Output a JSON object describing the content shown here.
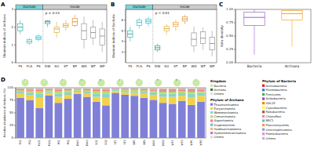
{
  "chart_data": [
    {
      "type": "box",
      "title": "A",
      "y_label": "Shannon indices of Archaea",
      "annotation": "p = 0.15",
      "categories": [
        "FS",
        "FLS",
        "PS",
        "DW",
        "SO",
        "ST",
        "BP",
        "WD",
        "WT",
        "WP"
      ],
      "colors": [
        "#2bb3a8",
        "#3fc3c8",
        "#21b9d0",
        "#2a9d8f",
        "#d9b040",
        "#f0a030",
        "#e8902a",
        "#999999",
        "#999999",
        "#999999"
      ],
      "groups": [
        {
          "label": "Outside",
          "start": 0,
          "end": 2,
          "color": "#7fd3d8"
        },
        {
          "label": "Inside",
          "start": 3,
          "end": 9,
          "color": "#cccccc"
        }
      ],
      "stats": [
        [
          1.6,
          1.8,
          2.0,
          2.2,
          2.4
        ],
        [
          1.0,
          1.1,
          1.2,
          1.3,
          1.4
        ],
        [
          1.2,
          1.3,
          1.4,
          1.5,
          1.6
        ],
        [
          2.0,
          2.2,
          2.3,
          2.35,
          2.4
        ],
        [
          1.4,
          1.7,
          1.9,
          2.0,
          2.3
        ],
        [
          1.8,
          2.0,
          2.1,
          2.2,
          2.4
        ],
        [
          2.0,
          2.1,
          2.3,
          2.5,
          2.7
        ],
        [
          0.8,
          1.3,
          1.8,
          2.2,
          2.6
        ],
        [
          1.0,
          1.4,
          1.7,
          2.0,
          2.4
        ],
        [
          0.6,
          1.0,
          1.5,
          1.9,
          2.3
        ]
      ],
      "ylim": [
        0,
        3
      ],
      "yticks": [
        0,
        1,
        2,
        3
      ]
    },
    {
      "type": "box",
      "title": "B",
      "y_label": "Shannon indices of Bacteria",
      "annotation": "p < 0.01",
      "categories": [
        "FS",
        "FLS",
        "PS",
        "DW",
        "SO",
        "ST",
        "BP",
        "WD",
        "WT",
        "WP"
      ],
      "colors": [
        "#2bb3a8",
        "#3fc3c8",
        "#21b9d0",
        "#2a9d8f",
        "#d9b040",
        "#f0a030",
        "#e8902a",
        "#999999",
        "#999999",
        "#999999"
      ],
      "groups": [
        {
          "label": "Outside",
          "start": 0,
          "end": 2,
          "color": "#7fd3d8"
        },
        {
          "label": "Inside",
          "start": 3,
          "end": 9,
          "color": "#cccccc"
        }
      ],
      "stats": [
        [
          4.0,
          4.4,
          4.7,
          5.0,
          5.4
        ],
        [
          5.2,
          5.5,
          5.8,
          6.0,
          6.2
        ],
        [
          5.4,
          5.7,
          5.9,
          6.1,
          6.3
        ],
        [
          3.0,
          3.2,
          3.4,
          3.6,
          3.8
        ],
        [
          4.6,
          5.0,
          5.2,
          5.4,
          5.6
        ],
        [
          5.0,
          5.4,
          5.6,
          5.8,
          6.0
        ],
        [
          5.6,
          5.9,
          6.1,
          6.3,
          6.5
        ],
        [
          3.0,
          3.6,
          4.2,
          4.8,
          5.4
        ],
        [
          3.2,
          3.8,
          4.3,
          4.9,
          5.3
        ],
        [
          2.6,
          3.2,
          3.8,
          4.4,
          5.0
        ]
      ],
      "ylim": [
        2,
        7
      ],
      "yticks": [
        3,
        4,
        5,
        6
      ]
    },
    {
      "type": "box",
      "title": "C",
      "y_label": "Beta diversity",
      "categories": [
        "Bacteria",
        "Archaea"
      ],
      "colors": [
        "#9e5fc6",
        "#f5a623"
      ],
      "stats": [
        [
          0.15,
          0.7,
          0.85,
          0.95,
          1.0
        ],
        [
          0.3,
          0.8,
          0.92,
          0.98,
          1.0
        ]
      ],
      "ylim": [
        0,
        1
      ],
      "yticks": [
        {
          "value": 0,
          "label": "0.00"
        },
        {
          "value": 0.25,
          "label": "0.25"
        },
        {
          "value": 0.5,
          "label": "0.50"
        },
        {
          "value": 0.75,
          "label": "0.75"
        },
        {
          "value": 1,
          "label": "1.00"
        }
      ]
    },
    {
      "type": "bar",
      "title": "D",
      "y_label": "Relative abundance of Archaea (%)",
      "stacked": true,
      "legend": "right",
      "legend_titles": [
        "Kingdom",
        "Phylum of Archaea",
        "Phylum of Bacteria"
      ],
      "categories": [
        "FS1",
        "FS2",
        "FLS1",
        "FLS2",
        "PS1",
        "PS2",
        "DW1",
        "DW2",
        "SO1",
        "SO2",
        "ST1",
        "ST2",
        "BP1",
        "BP2",
        "WD1",
        "WD2",
        "WT1",
        "WT2",
        "WP1",
        "WP2"
      ],
      "series": [
        {
          "name": "Thaumarchaeota",
          "color": "#8080d8",
          "values": [
            80,
            75,
            60,
            85,
            70,
            78,
            88,
            82,
            72,
            65,
            90,
            86,
            84,
            80,
            76,
            70,
            68,
            74,
            66,
            72
          ]
        },
        {
          "name": "Euryarchaeota",
          "color": "#f2d14b",
          "values": [
            8,
            10,
            20,
            5,
            12,
            8,
            4,
            6,
            10,
            15,
            3,
            5,
            6,
            8,
            10,
            12,
            14,
            10,
            15,
            12
          ]
        },
        {
          "name": "Woesearchaeota",
          "color": "#8dd3c7",
          "values": [
            4,
            5,
            8,
            3,
            6,
            5,
            2,
            4,
            6,
            8,
            2,
            3,
            3,
            4,
            5,
            6,
            6,
            5,
            7,
            6
          ]
        },
        {
          "name": "Crenarchaeota",
          "color": "#b3de69",
          "values": [
            3,
            4,
            5,
            2,
            5,
            4,
            2,
            3,
            5,
            5,
            2,
            2,
            3,
            3,
            3,
            4,
            4,
            4,
            4,
            3
          ]
        },
        {
          "name": "Aigarchaeota",
          "color": "#fb8072",
          "values": [
            2,
            2,
            3,
            2,
            3,
            2,
            1,
            2,
            3,
            3,
            1,
            2,
            2,
            2,
            2,
            3,
            3,
            3,
            3,
            3
          ]
        },
        {
          "name": "Diapherotrites",
          "color": "#80b1d3",
          "values": [
            1,
            2,
            2,
            1,
            2,
            1,
            1,
            1,
            2,
            2,
            1,
            1,
            1,
            1,
            2,
            2,
            2,
            2,
            2,
            2
          ]
        },
        {
          "name": "Hadesarchaeaeota",
          "color": "#fdb462",
          "values": [
            1,
            1,
            1,
            1,
            1,
            1,
            1,
            1,
            1,
            1,
            0,
            0,
            0,
            1,
            1,
            1,
            1,
            1,
            1,
            1
          ]
        },
        {
          "name": "Hydrothermarchaeota",
          "color": "#bc80bd",
          "values": [
            0.5,
            0.5,
            0.5,
            0.5,
            0.5,
            0.5,
            0.5,
            0.5,
            0.5,
            0.5,
            0.5,
            0.5,
            0.5,
            0.5,
            0.5,
            0.5,
            0.5,
            0.5,
            0.5,
            0.5
          ]
        },
        {
          "name": "Others",
          "color": "#d9d9d9",
          "values": [
            0.5,
            0.5,
            0.5,
            0.5,
            0.5,
            0.5,
            0.5,
            0.5,
            0.5,
            0.5,
            0.5,
            0.5,
            0.5,
            0.5,
            0.5,
            1.5,
            1.5,
            0.5,
            1.5,
            0.5
          ]
        }
      ],
      "ylim": [
        0,
        100
      ],
      "yticks": [
        0,
        25,
        50,
        75,
        100
      ],
      "kingdom": {
        "names": [
          "Bacteria",
          "Archaea",
          "Others"
        ],
        "colors": [
          "#c7e9a0",
          "#3a7d44",
          "#e0e0e0"
        ]
      },
      "pies": [
        {
          "bars": [
            0,
            1
          ],
          "values": [
            96,
            3,
            1
          ]
        },
        {
          "bars": [
            2,
            3
          ],
          "values": [
            97,
            2,
            1
          ]
        },
        {
          "bars": [
            4,
            5
          ],
          "values": [
            95,
            4,
            1
          ]
        },
        {
          "bars": [
            6,
            7
          ],
          "values": [
            94,
            5,
            1
          ]
        },
        {
          "bars": [
            8,
            9
          ],
          "values": [
            93,
            6,
            1
          ]
        },
        {
          "bars": [
            10,
            11
          ],
          "values": [
            95,
            4,
            1
          ]
        },
        {
          "bars": [
            12,
            13
          ],
          "values": [
            96,
            3,
            1
          ]
        },
        {
          "bars": [
            14,
            15
          ],
          "values": [
            94,
            5,
            1
          ]
        },
        {
          "bars": [
            16,
            17
          ],
          "values": [
            93,
            6,
            1
          ]
        },
        {
          "bars": [
            18,
            19
          ],
          "values": [
            95,
            4,
            1
          ]
        }
      ],
      "bacteria_phyla": {
        "names": [
          "Actinobacteria",
          "Proteobacteria",
          "Firmicutes",
          "Acidobacteria",
          "GAL15",
          "Cyanobacteria",
          "Rokubacteria",
          "Chloroflexi",
          "BRC1",
          "Planctomycetes",
          "Omnitrophicaeota",
          "Patescibacteria",
          "Others"
        ],
        "colors": [
          "#e41a1c",
          "#377eb8",
          "#4daf4a",
          "#984ea3",
          "#ff7f00",
          "#ffff33",
          "#a65628",
          "#f781bf",
          "#66c2a5",
          "#fc8d62",
          "#8da0cb",
          "#e78ac3",
          "#bbbbbb"
        ]
      }
    }
  ]
}
